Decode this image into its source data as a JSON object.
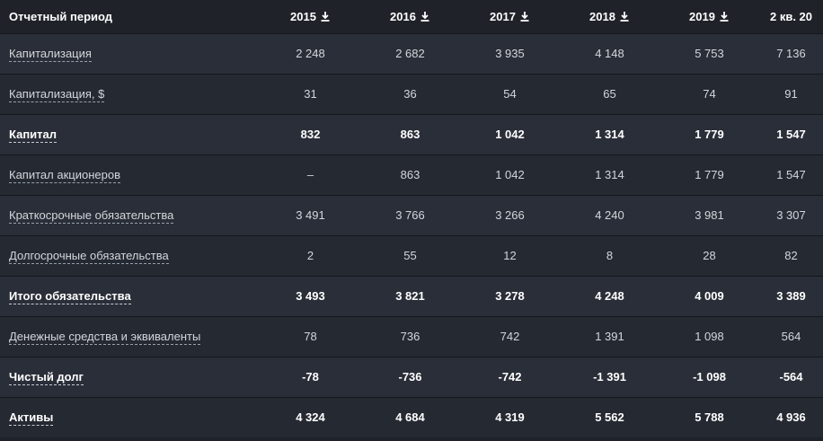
{
  "header": {
    "period_label": "Отчетный период",
    "years": [
      "2015",
      "2016",
      "2017",
      "2018",
      "2019",
      "2 кв. 20"
    ]
  },
  "rows": [
    {
      "label": "Капитализация",
      "bold": false,
      "values": [
        "2 248",
        "2 682",
        "3 935",
        "4 148",
        "5 753",
        "7 136"
      ]
    },
    {
      "label": "Капитализация, $",
      "bold": false,
      "values": [
        "31",
        "36",
        "54",
        "65",
        "74",
        "91"
      ]
    },
    {
      "label": "Капитал",
      "bold": true,
      "values": [
        "832",
        "863",
        "1 042",
        "1 314",
        "1 779",
        "1 547"
      ]
    },
    {
      "label": "Капитал акционеров",
      "bold": false,
      "values": [
        "–",
        "863",
        "1 042",
        "1 314",
        "1 779",
        "1 547"
      ]
    },
    {
      "label": "Краткосрочные обязательства",
      "bold": false,
      "values": [
        "3 491",
        "3 766",
        "3 266",
        "4 240",
        "3 981",
        "3 307"
      ]
    },
    {
      "label": "Долгосрочные обязательства",
      "bold": false,
      "values": [
        "2",
        "55",
        "12",
        "8",
        "28",
        "82"
      ]
    },
    {
      "label": "Итого обязательства",
      "bold": true,
      "values": [
        "3 493",
        "3 821",
        "3 278",
        "4 248",
        "4 009",
        "3 389"
      ]
    },
    {
      "label": "Денежные средства и эквиваленты",
      "bold": false,
      "values": [
        "78",
        "736",
        "742",
        "1 391",
        "1 098",
        "564"
      ]
    },
    {
      "label": "Чистый долг",
      "bold": true,
      "values": [
        "-78",
        "-736",
        "-742",
        "-1 391",
        "-1 098",
        "-564"
      ]
    },
    {
      "label": "Активы",
      "bold": true,
      "values": [
        "4 324",
        "4 684",
        "4 319",
        "5 562",
        "5 788",
        "4 936"
      ]
    }
  ]
}
